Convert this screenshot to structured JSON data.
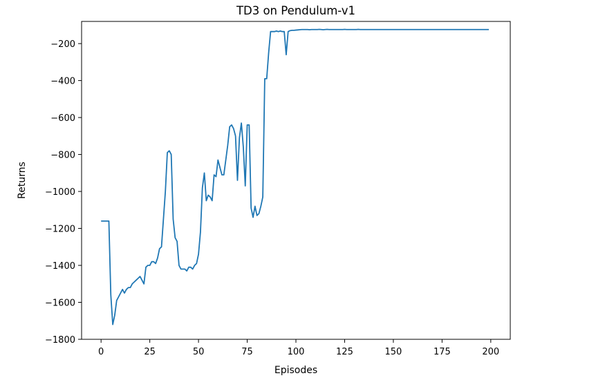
{
  "chart_data": {
    "type": "line",
    "title": "TD3 on Pendulum-v1",
    "xlabel": "Episodes",
    "ylabel": "Returns",
    "xlim": [
      -10,
      210
    ],
    "ylim": [
      -1800,
      -80
    ],
    "xticks": [
      0,
      25,
      50,
      75,
      100,
      125,
      150,
      175,
      200
    ],
    "yticks": [
      -1800,
      -1600,
      -1400,
      -1200,
      -1000,
      -800,
      -600,
      -400,
      -200
    ],
    "grid": false,
    "colors": {
      "line": "#1f77b4"
    },
    "series": [
      {
        "x": [
          0,
          1,
          2,
          3,
          4,
          5,
          6,
          7,
          8,
          9,
          10,
          11,
          12,
          13,
          14,
          15,
          16,
          17,
          18,
          19,
          20,
          21,
          22,
          23,
          24,
          25,
          26,
          27,
          28,
          29,
          30,
          31,
          32,
          33,
          34,
          35,
          36,
          37,
          38,
          39,
          40,
          41,
          42,
          43,
          44,
          45,
          46,
          47,
          48,
          49,
          50,
          51,
          52,
          53,
          54,
          55,
          56,
          57,
          58,
          59,
          60,
          61,
          62,
          63,
          64,
          65,
          66,
          67,
          68,
          69,
          70,
          71,
          72,
          73,
          74,
          75,
          76,
          77,
          78,
          79,
          80,
          81,
          82,
          83,
          84,
          85,
          86,
          87,
          88,
          89,
          90,
          91,
          92,
          93,
          94,
          95,
          96,
          97,
          98,
          99,
          100,
          101,
          102,
          103,
          104,
          105,
          106,
          107,
          108,
          109,
          110,
          111,
          112,
          113,
          114,
          115,
          116,
          117,
          118,
          119,
          120,
          121,
          122,
          123,
          124,
          125,
          126,
          127,
          128,
          129,
          130,
          131,
          132,
          133,
          134,
          135,
          136,
          137,
          138,
          139,
          140,
          141,
          142,
          143,
          144,
          145,
          146,
          147,
          148,
          149,
          150,
          151,
          152,
          153,
          154,
          155,
          156,
          157,
          158,
          159,
          160,
          161,
          162,
          163,
          164,
          165,
          166,
          167,
          168,
          169,
          170,
          171,
          172,
          173,
          174,
          175,
          176,
          177,
          178,
          179,
          180,
          181,
          182,
          183,
          184,
          185,
          186,
          187,
          188,
          189,
          190,
          191,
          192,
          193,
          194,
          195,
          196,
          197,
          198,
          199
        ],
        "y": [
          -1160,
          -1160,
          -1160,
          -1160,
          -1160,
          -1560,
          -1720,
          -1670,
          -1590,
          -1570,
          -1550,
          -1530,
          -1550,
          -1530,
          -1520,
          -1520,
          -1500,
          -1490,
          -1480,
          -1470,
          -1460,
          -1480,
          -1500,
          -1410,
          -1400,
          -1400,
          -1380,
          -1380,
          -1390,
          -1360,
          -1310,
          -1300,
          -1150,
          -1000,
          -790,
          -780,
          -800,
          -1150,
          -1250,
          -1270,
          -1400,
          -1420,
          -1420,
          -1420,
          -1430,
          -1410,
          -1410,
          -1420,
          -1400,
          -1390,
          -1340,
          -1220,
          -980,
          -900,
          -1050,
          -1020,
          -1030,
          -1050,
          -910,
          -920,
          -830,
          -870,
          -910,
          -910,
          -830,
          -750,
          -650,
          -640,
          -660,
          -700,
          -940,
          -710,
          -630,
          -760,
          -970,
          -640,
          -640,
          -1090,
          -1140,
          -1080,
          -1130,
          -1120,
          -1080,
          -1030,
          -390,
          -390,
          -250,
          -135,
          -135,
          -135,
          -132,
          -135,
          -132,
          -135,
          -135,
          -260,
          -135,
          -130,
          -128,
          -128,
          -127,
          -126,
          -125,
          -124,
          -124,
          -124,
          -124,
          -125,
          -124,
          -124,
          -124,
          -124,
          -123,
          -124,
          -125,
          -124,
          -123,
          -124,
          -124,
          -124,
          -124,
          -124,
          -124,
          -124,
          -124,
          -123,
          -124,
          -124,
          -124,
          -124,
          -124,
          -124,
          -123,
          -124,
          -124,
          -124,
          -124,
          -124,
          -124,
          -124,
          -124,
          -124,
          -124,
          -124,
          -124,
          -124,
          -124,
          -124,
          -124,
          -124,
          -124,
          -124,
          -124,
          -124,
          -124,
          -124,
          -124,
          -124,
          -124,
          -124,
          -124,
          -124,
          -124,
          -124,
          -124,
          -124,
          -124,
          -124,
          -124,
          -124,
          -124,
          -124,
          -124,
          -124,
          -124,
          -124,
          -124,
          -124,
          -124,
          -124,
          -124,
          -124,
          -124,
          -124,
          -124,
          -124,
          -124,
          -124,
          -124,
          -124,
          -124,
          -124,
          -124,
          -124,
          -124,
          -124,
          -124,
          -124,
          -124,
          -124
        ]
      }
    ]
  }
}
